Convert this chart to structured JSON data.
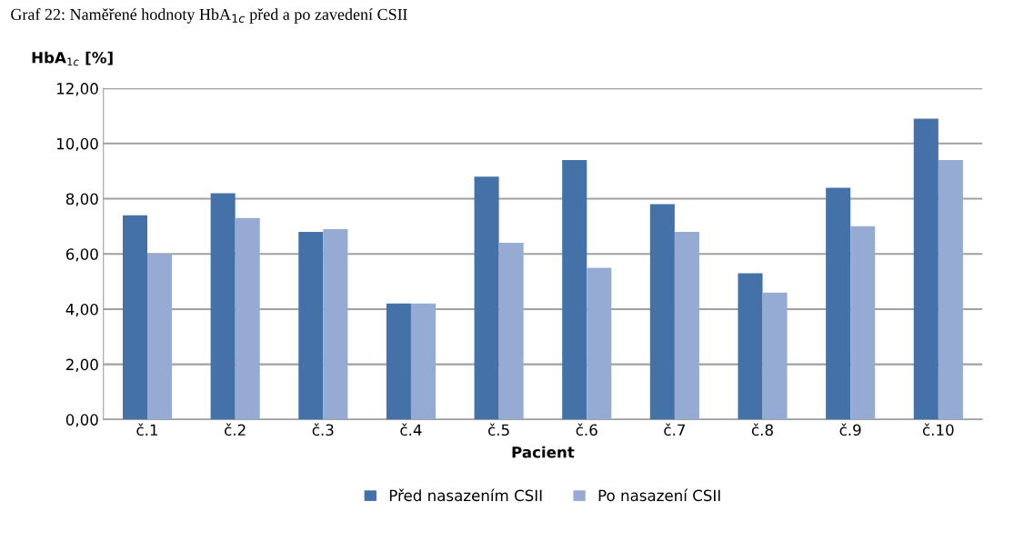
{
  "chart_data": {
    "type": "bar",
    "title": "Graf 22: Naměřené hodnoty HbA$_{1c}$ před a po zavedení CSII",
    "ylabel": "HbA$_{1c}$ [%]",
    "xlabel": "Pacient",
    "categories": [
      "č.1",
      "č.2",
      "č.3",
      "č.4",
      "č.5",
      "č.6",
      "č.7",
      "č.8",
      "č.9",
      "č.10"
    ],
    "series": [
      {
        "name": "Před nasazením CSII",
        "color": "#4472a8",
        "values": [
          7.4,
          8.2,
          6.8,
          4.2,
          8.8,
          9.4,
          7.8,
          5.3,
          8.4,
          10.9
        ]
      },
      {
        "name": "Po nasazení CSII",
        "color": "#95abd3",
        "values": [
          6.0,
          7.3,
          6.9,
          4.2,
          6.4,
          5.5,
          6.8,
          4.6,
          7.0,
          9.4
        ]
      }
    ],
    "ylim": [
      0,
      12
    ],
    "yticks": [
      {
        "value": 0,
        "label": "0,00"
      },
      {
        "value": 2,
        "label": "2,00"
      },
      {
        "value": 4,
        "label": "4,00"
      },
      {
        "value": 6,
        "label": "6,00"
      },
      {
        "value": 8,
        "label": "8,00"
      },
      {
        "value": 10,
        "label": "10,00"
      },
      {
        "value": 12,
        "label": "12,00"
      }
    ],
    "grid": "y",
    "legend": "bottom"
  }
}
